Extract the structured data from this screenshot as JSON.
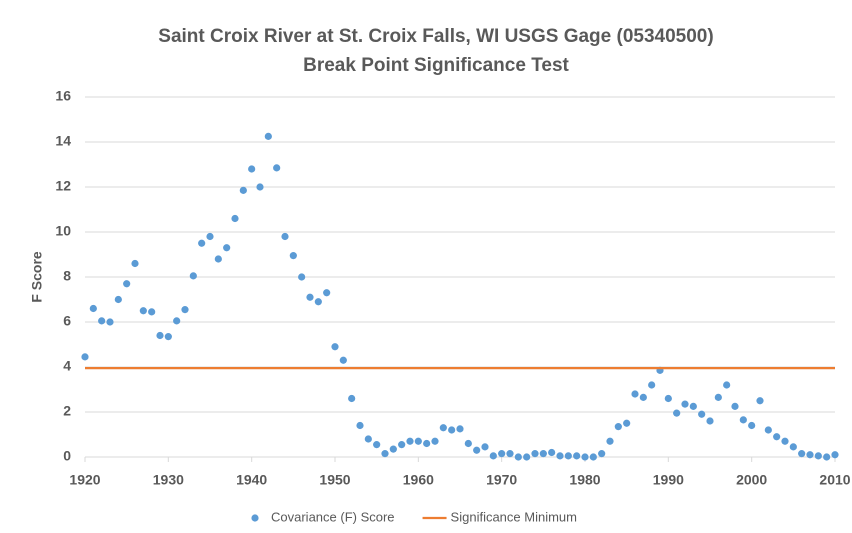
{
  "chart_data": {
    "type": "scatter",
    "title": "Saint Croix River at St. Croix Falls, WI USGS Gage (05340500)",
    "subtitle": "Break Point Significance Test",
    "y_label": "F Score",
    "xlim": [
      1920,
      2010
    ],
    "xticks": [
      1920,
      1930,
      1940,
      1950,
      1960,
      1970,
      1980,
      1990,
      2000,
      2010
    ],
    "ylim": [
      0,
      16
    ],
    "yticks": [
      0,
      2,
      4,
      6,
      8,
      10,
      12,
      14,
      16
    ],
    "grid": true,
    "legend": "bottom",
    "series": [
      {
        "name": "Covariance (F) Score",
        "color": "#5b9bd5",
        "mode": "markers",
        "x": [
          1920,
          1921,
          1922,
          1923,
          1924,
          1925,
          1926,
          1927,
          1928,
          1929,
          1930,
          1931,
          1932,
          1933,
          1934,
          1935,
          1936,
          1937,
          1938,
          1939,
          1940,
          1941,
          1942,
          1943,
          1944,
          1945,
          1946,
          1947,
          1948,
          1949,
          1950,
          1951,
          1952,
          1953,
          1954,
          1955,
          1956,
          1957,
          1958,
          1959,
          1960,
          1961,
          1962,
          1963,
          1964,
          1965,
          1966,
          1967,
          1968,
          1969,
          1970,
          1971,
          1972,
          1973,
          1974,
          1975,
          1976,
          1977,
          1978,
          1979,
          1980,
          1981,
          1982,
          1983,
          1984,
          1985,
          1986,
          1987,
          1988,
          1989,
          1990,
          1991,
          1992,
          1993,
          1994,
          1995,
          1996,
          1997,
          1998,
          1999,
          2000,
          2001,
          2002,
          2003,
          2004,
          2005,
          2006,
          2007,
          2008,
          2009,
          2010
        ],
        "values": [
          4.45,
          6.6,
          6.05,
          6.0,
          7.0,
          7.7,
          8.6,
          6.5,
          6.45,
          5.4,
          5.35,
          6.05,
          6.55,
          8.05,
          9.5,
          9.8,
          8.8,
          9.3,
          10.6,
          11.85,
          12.8,
          12.0,
          14.25,
          12.85,
          9.8,
          8.95,
          8.0,
          7.1,
          6.9,
          7.3,
          4.9,
          4.3,
          2.6,
          1.4,
          0.8,
          0.55,
          0.15,
          0.35,
          0.55,
          0.7,
          0.7,
          0.6,
          0.7,
          1.3,
          1.2,
          1.25,
          0.6,
          0.3,
          0.45,
          0.05,
          0.15,
          0.15,
          0.0,
          0.0,
          0.15,
          0.15,
          0.2,
          0.05,
          0.05,
          0.05,
          0.0,
          0.0,
          0.15,
          0.7,
          1.35,
          1.5,
          2.8,
          2.65,
          3.2,
          3.85,
          2.6,
          1.95,
          2.35,
          2.25,
          1.9,
          1.6,
          2.65,
          3.2,
          2.25,
          1.65,
          1.4,
          2.5,
          1.2,
          0.9,
          0.7,
          0.45,
          0.15,
          0.1,
          0.05,
          0.0,
          0.1
        ]
      },
      {
        "name": "Significance Minimum",
        "color": "#ed7d31",
        "mode": "line",
        "x": [
          1920,
          2010
        ],
        "values": [
          3.95,
          3.95
        ]
      }
    ]
  }
}
